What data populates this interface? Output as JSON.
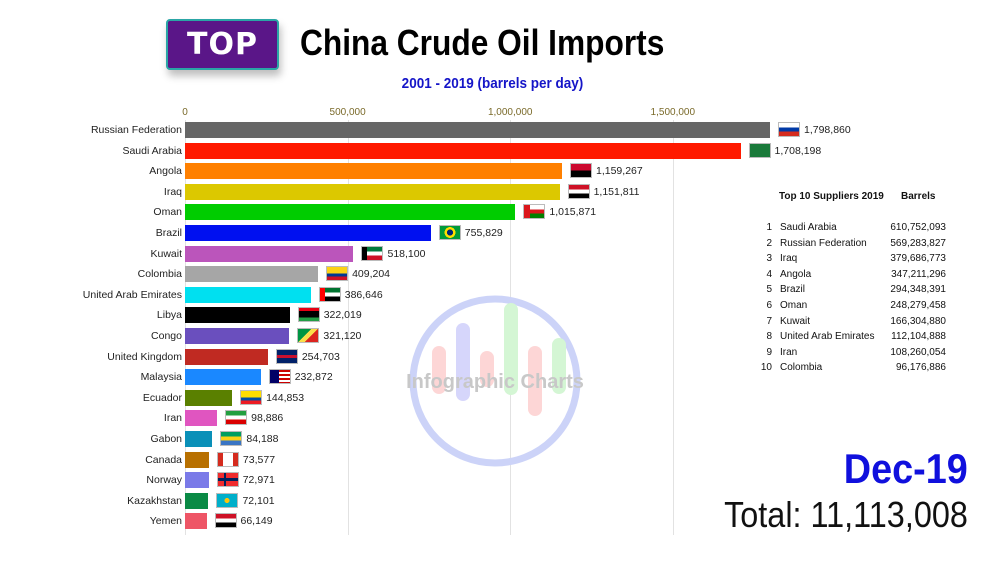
{
  "header": {
    "badge": "TOP",
    "title": "China Crude Oil Imports",
    "subtitle": "2001 - 2019 (barrels per day)"
  },
  "axis": {
    "ticks": [
      {
        "label": "0",
        "value": 0
      },
      {
        "label": "500,000",
        "value": 500000
      },
      {
        "label": "1,000,000",
        "value": 1000000
      },
      {
        "label": "1,500,000",
        "value": 1500000
      }
    ]
  },
  "bars": [
    {
      "country": "Russian Federation",
      "value": 1798860,
      "value_label": "1,798,860",
      "color": "#666666",
      "flag": "russia-flag-icon"
    },
    {
      "country": "Saudi Arabia",
      "value": 1708198,
      "value_label": "1,708,198",
      "color": "#ff1a00",
      "flag": "saudi-arabia-flag-icon"
    },
    {
      "country": "Angola",
      "value": 1159267,
      "value_label": "1,159,267",
      "color": "#ff8000",
      "flag": "angola-flag-icon"
    },
    {
      "country": "Iraq",
      "value": 1151811,
      "value_label": "1,151,811",
      "color": "#dcc800",
      "flag": "iraq-flag-icon"
    },
    {
      "country": "Oman",
      "value": 1015871,
      "value_label": "1,015,871",
      "color": "#00cc00",
      "flag": "oman-flag-icon"
    },
    {
      "country": "Brazil",
      "value": 755829,
      "value_label": "755,829",
      "color": "#0010f0",
      "flag": "brazil-flag-icon"
    },
    {
      "country": "Kuwait",
      "value": 518100,
      "value_label": "518,100",
      "color": "#bb55bb",
      "flag": "kuwait-flag-icon"
    },
    {
      "country": "Colombia",
      "value": 409204,
      "value_label": "409,204",
      "color": "#a6a6a6",
      "flag": "colombia-flag-icon"
    },
    {
      "country": "United Arab Emirates",
      "value": 386646,
      "value_label": "386,646",
      "color": "#00e0f0",
      "flag": "uae-flag-icon"
    },
    {
      "country": "Libya",
      "value": 322019,
      "value_label": "322,019",
      "color": "#000000",
      "flag": "libya-flag-icon"
    },
    {
      "country": "Congo",
      "value": 321120,
      "value_label": "321,120",
      "color": "#6a4fbe",
      "flag": "congo-flag-icon"
    },
    {
      "country": "United Kingdom",
      "value": 254703,
      "value_label": "254,703",
      "color": "#c02a22",
      "flag": "uk-flag-icon"
    },
    {
      "country": "Malaysia",
      "value": 232872,
      "value_label": "232,872",
      "color": "#1a88ff",
      "flag": "malaysia-flag-icon"
    },
    {
      "country": "Ecuador",
      "value": 144853,
      "value_label": "144,853",
      "color": "#5a8000",
      "flag": "ecuador-flag-icon"
    },
    {
      "country": "Iran",
      "value": 98886,
      "value_label": "98,886",
      "color": "#e055c0",
      "flag": "iran-flag-icon"
    },
    {
      "country": "Gabon",
      "value": 84188,
      "value_label": "84,188",
      "color": "#0a90b8",
      "flag": "gabon-flag-icon"
    },
    {
      "country": "Canada",
      "value": 73577,
      "value_label": "73,577",
      "color": "#b87000",
      "flag": "canada-flag-icon"
    },
    {
      "country": "Norway",
      "value": 72971,
      "value_label": "72,971",
      "color": "#7a7ae8",
      "flag": "norway-flag-icon"
    },
    {
      "country": "Kazakhstan",
      "value": 72101,
      "value_label": "72,101",
      "color": "#0a8a45",
      "flag": "kazakhstan-flag-icon"
    },
    {
      "country": "Yemen",
      "value": 66149,
      "value_label": "66,149",
      "color": "#ee5566",
      "flag": "yemen-flag-icon"
    }
  ],
  "top10": {
    "header_name": "Top 10 Suppliers 2019",
    "header_value": "Barrels",
    "rows": [
      {
        "rank": "1",
        "name": "Saudi Arabia",
        "value": "610,752,093"
      },
      {
        "rank": "2",
        "name": "Russian Federation",
        "value": "569,283,827"
      },
      {
        "rank": "3",
        "name": "Iraq",
        "value": "379,686,773"
      },
      {
        "rank": "4",
        "name": "Angola",
        "value": "347,211,296"
      },
      {
        "rank": "5",
        "name": "Brazil",
        "value": "294,348,391"
      },
      {
        "rank": "6",
        "name": "Oman",
        "value": "248,279,458"
      },
      {
        "rank": "7",
        "name": "Kuwait",
        "value": "166,304,880"
      },
      {
        "rank": "8",
        "name": "United Arab Emirates",
        "value": "112,104,888"
      },
      {
        "rank": "9",
        "name": "Iran",
        "value": "108,260,054"
      },
      {
        "rank": "10",
        "name": "Colombia",
        "value": "96,176,886"
      }
    ]
  },
  "footer": {
    "date": "Dec-19",
    "total": "Total: 11,113,008"
  },
  "watermark": {
    "text": "Infographic Charts"
  },
  "chart_data": {
    "type": "bar",
    "orientation": "horizontal",
    "title": "China Crude Oil Imports",
    "subtitle": "2001 - 2019 (barrels per day)",
    "period": "Dec-19",
    "total": 11113008,
    "categories": [
      "Russian Federation",
      "Saudi Arabia",
      "Angola",
      "Iraq",
      "Oman",
      "Brazil",
      "Kuwait",
      "Colombia",
      "United Arab Emirates",
      "Libya",
      "Congo",
      "United Kingdom",
      "Malaysia",
      "Ecuador",
      "Iran",
      "Gabon",
      "Canada",
      "Norway",
      "Kazakhstan",
      "Yemen"
    ],
    "values": [
      1798860,
      1708198,
      1159267,
      1151811,
      1015871,
      755829,
      518100,
      409204,
      386646,
      322019,
      321120,
      254703,
      232872,
      144853,
      98886,
      84188,
      73577,
      72971,
      72101,
      66149
    ],
    "xlabel": "",
    "ylabel": "",
    "xlim": [
      0,
      1800000
    ],
    "x_ticks": [
      "0",
      "500,000",
      "1,000,000",
      "1,500,000"
    ],
    "grid": true,
    "legend": "none",
    "side_table": {
      "title": "Top 10 Suppliers 2019",
      "column": "Barrels",
      "rows": [
        [
          "Saudi Arabia",
          610752093
        ],
        [
          "Russian Federation",
          569283827
        ],
        [
          "Iraq",
          379686773
        ],
        [
          "Angola",
          347211296
        ],
        [
          "Brazil",
          294348391
        ],
        [
          "Oman",
          248279458
        ],
        [
          "Kuwait",
          166304880
        ],
        [
          "United Arab Emirates",
          112104888
        ],
        [
          "Iran",
          108260054
        ],
        [
          "Colombia",
          96176886
        ]
      ]
    }
  }
}
